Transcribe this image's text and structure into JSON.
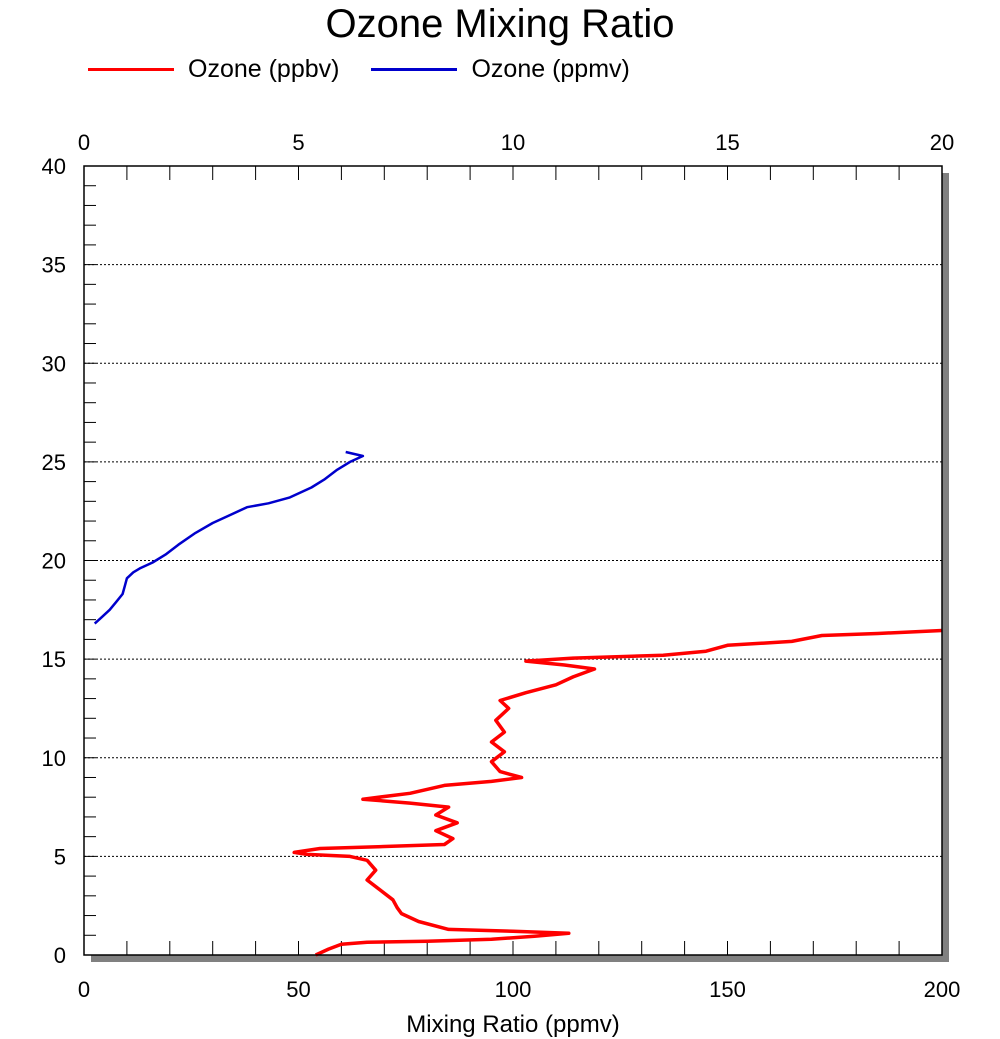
{
  "chart_data": {
    "type": "line",
    "title": "Ozone Mixing Ratio",
    "xlabel": "Mixing Ratio (ppmv)",
    "ylabel": "",
    "xlim": [
      0,
      200
    ],
    "x2lim": [
      0,
      20
    ],
    "ylim": [
      0,
      40
    ],
    "x_ticks": [
      "0",
      "50",
      "100",
      "150",
      "200"
    ],
    "x2_ticks": [
      "0",
      "5",
      "10",
      "15",
      "20"
    ],
    "y_ticks": [
      "0",
      "5",
      "10",
      "15",
      "20",
      "25",
      "30",
      "35",
      "40"
    ],
    "grid": "horizontal dotted",
    "legend_position": "top-left",
    "series": [
      {
        "name": "Ozone (ppbv)",
        "color": "#ff0000",
        "axis": "bottom",
        "points": [
          [
            54,
            0.0
          ],
          [
            57,
            0.3
          ],
          [
            60,
            0.55
          ],
          [
            66,
            0.65
          ],
          [
            80,
            0.7
          ],
          [
            95,
            0.8
          ],
          [
            105,
            0.95
          ],
          [
            113,
            1.1
          ],
          [
            100,
            1.2
          ],
          [
            85,
            1.3
          ],
          [
            78,
            1.7
          ],
          [
            74,
            2.1
          ],
          [
            73,
            2.4
          ],
          [
            72,
            2.8
          ],
          [
            69,
            3.3
          ],
          [
            66,
            3.8
          ],
          [
            68,
            4.3
          ],
          [
            66,
            4.8
          ],
          [
            62,
            5.0
          ],
          [
            52,
            5.1
          ],
          [
            49,
            5.2
          ],
          [
            55,
            5.4
          ],
          [
            70,
            5.5
          ],
          [
            84,
            5.6
          ],
          [
            86,
            5.9
          ],
          [
            82,
            6.3
          ],
          [
            87,
            6.7
          ],
          [
            82,
            7.1
          ],
          [
            85,
            7.5
          ],
          [
            76,
            7.7
          ],
          [
            65,
            7.9
          ],
          [
            76,
            8.2
          ],
          [
            84,
            8.6
          ],
          [
            95,
            8.8
          ],
          [
            102,
            9.0
          ],
          [
            97,
            9.3
          ],
          [
            95,
            9.8
          ],
          [
            98,
            10.3
          ],
          [
            95,
            10.8
          ],
          [
            98,
            11.3
          ],
          [
            96,
            11.9
          ],
          [
            99,
            12.5
          ],
          [
            97,
            12.9
          ],
          [
            103,
            13.3
          ],
          [
            110,
            13.7
          ],
          [
            114,
            14.1
          ],
          [
            119,
            14.5
          ],
          [
            112,
            14.7
          ],
          [
            103,
            14.9
          ],
          [
            114,
            15.05
          ],
          [
            135,
            15.2
          ],
          [
            145,
            15.4
          ],
          [
            150,
            15.7
          ],
          [
            165,
            15.9
          ],
          [
            172,
            16.2
          ],
          [
            185,
            16.3
          ],
          [
            200,
            16.45
          ]
        ]
      },
      {
        "name": "Ozone (ppmv)",
        "color": "#0000cc",
        "axis": "top",
        "points": [
          [
            0.25,
            16.8
          ],
          [
            0.4,
            17.1
          ],
          [
            0.6,
            17.5
          ],
          [
            0.75,
            17.9
          ],
          [
            0.9,
            18.3
          ],
          [
            0.95,
            18.7
          ],
          [
            1.0,
            19.1
          ],
          [
            1.15,
            19.4
          ],
          [
            1.3,
            19.6
          ],
          [
            1.6,
            19.9
          ],
          [
            1.9,
            20.3
          ],
          [
            2.2,
            20.8
          ],
          [
            2.6,
            21.4
          ],
          [
            3.0,
            21.9
          ],
          [
            3.4,
            22.3
          ],
          [
            3.8,
            22.7
          ],
          [
            4.3,
            22.9
          ],
          [
            4.8,
            23.2
          ],
          [
            5.3,
            23.7
          ],
          [
            5.6,
            24.1
          ],
          [
            5.9,
            24.6
          ],
          [
            6.2,
            25.0
          ],
          [
            6.5,
            25.3
          ],
          [
            6.1,
            25.5
          ]
        ]
      }
    ]
  }
}
